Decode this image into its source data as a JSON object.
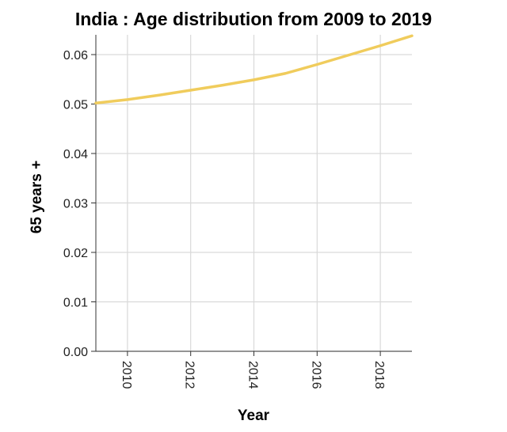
{
  "chart_data": {
    "type": "line",
    "title": "India : Age distribution from 2009 to 2019",
    "xlabel": "Year",
    "ylabel": "65 years +",
    "xlim": [
      2009,
      2019
    ],
    "ylim": [
      0,
      0.064
    ],
    "x_ticks": [
      2010,
      2012,
      2014,
      2016,
      2018
    ],
    "x_tick_labels": [
      "2010",
      "2012",
      "2014",
      "2016",
      "2018"
    ],
    "y_ticks": [
      0,
      0.01,
      0.02,
      0.03,
      0.04,
      0.05,
      0.06
    ],
    "y_tick_labels": [
      "0.00",
      "0.01",
      "0.02",
      "0.03",
      "0.04",
      "0.05",
      "0.06"
    ],
    "grid": true,
    "legend": "none",
    "series": [
      {
        "color": "#f0cc5c",
        "x": [
          2009,
          2010,
          2011,
          2012,
          2013,
          2014,
          2015,
          2016,
          2017,
          2018,
          2019
        ],
        "y": [
          0.0502,
          0.0509,
          0.0518,
          0.0528,
          0.0538,
          0.0549,
          0.0562,
          0.058,
          0.0599,
          0.0618,
          0.0638
        ]
      }
    ]
  }
}
